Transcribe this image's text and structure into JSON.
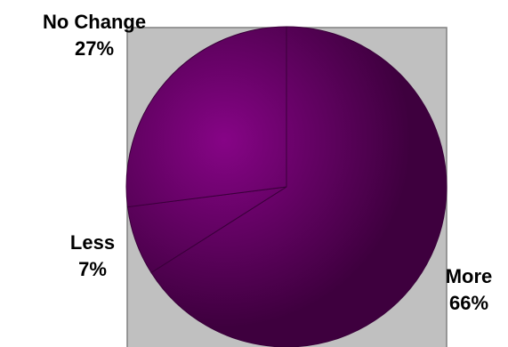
{
  "chart_data": {
    "type": "pie",
    "title": "",
    "start_angle_deg": 0,
    "direction": "clockwise",
    "slices": [
      {
        "label": "More",
        "value": 66,
        "value_label": "66%"
      },
      {
        "label": "Less",
        "value": 7,
        "value_label": "7%"
      },
      {
        "label": "No Change",
        "value": 27,
        "value_label": "27%"
      }
    ],
    "colors": {
      "plot_background": "#c0c0c0",
      "plot_border": "#808080",
      "slice_fill_light": "#860486",
      "slice_fill_dark": "#3e003e",
      "slice_edge": "#3a003a",
      "label_text": "#000000"
    },
    "legend": "none"
  }
}
